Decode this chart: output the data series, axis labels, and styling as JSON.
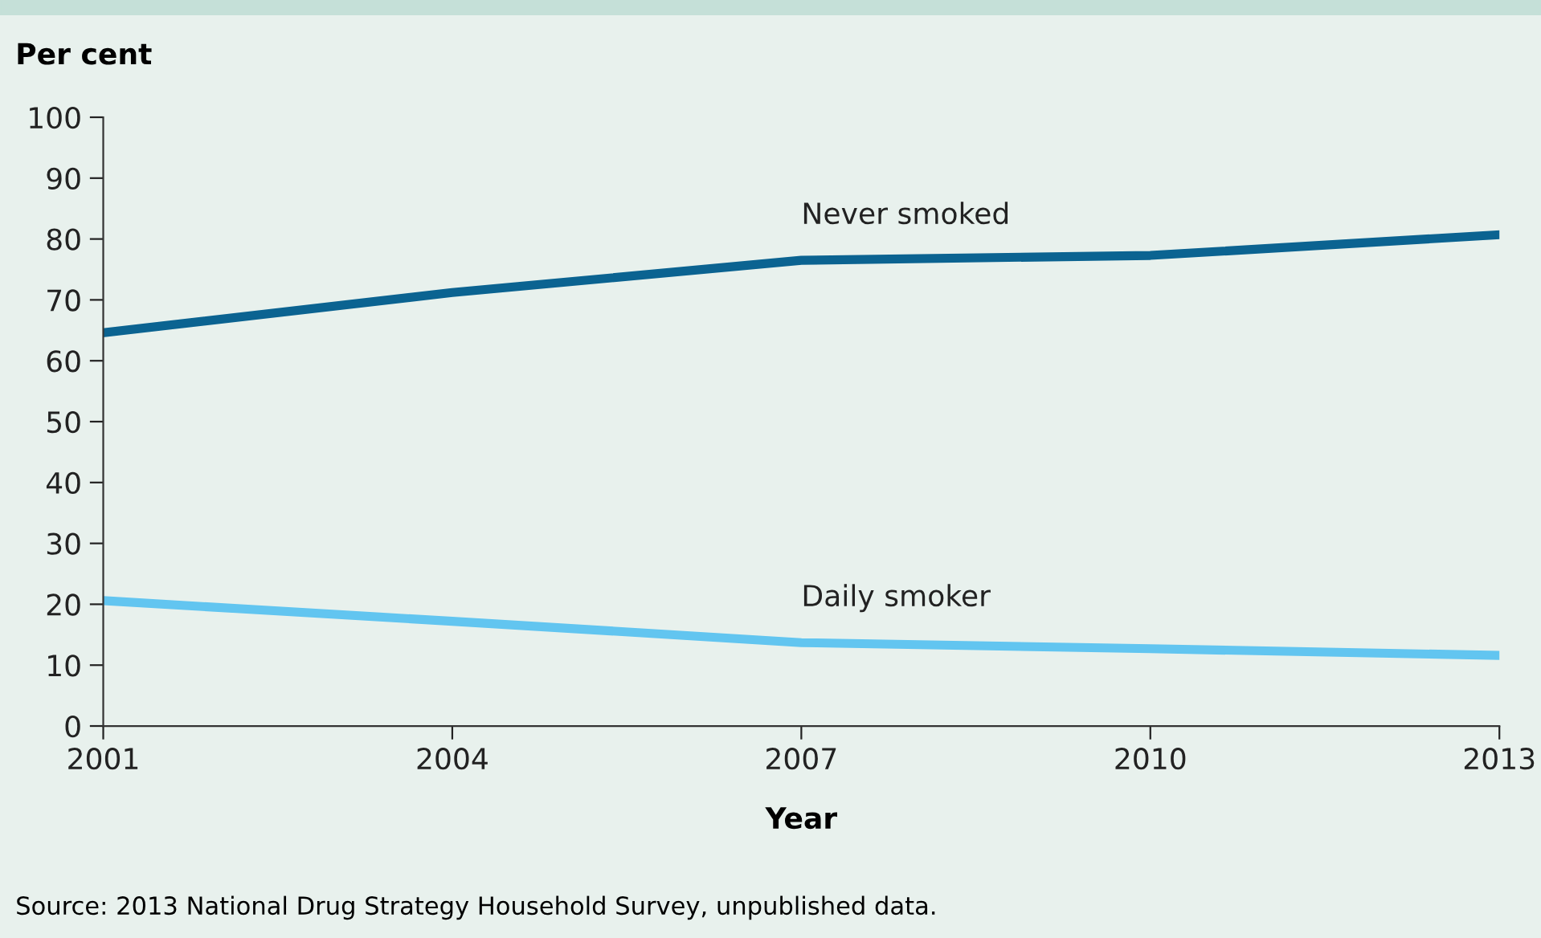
{
  "chart_data": {
    "type": "line",
    "ylabel": "Per cent",
    "xlabel": "Year",
    "x": [
      2001,
      2004,
      2007,
      2010,
      2013
    ],
    "series": [
      {
        "name": "Never smoked",
        "color": "#0b6391",
        "values": [
          64.6,
          71.2,
          76.5,
          77.3,
          80.7
        ]
      },
      {
        "name": "Daily smoker",
        "color": "#62c5f0",
        "values": [
          20.6,
          17.2,
          13.7,
          12.7,
          11.6
        ]
      }
    ],
    "xlim": [
      2001,
      2013
    ],
    "xticks": [
      2001,
      2004,
      2007,
      2010,
      2013
    ],
    "ylim": [
      0,
      100
    ],
    "yticks": [
      0,
      10,
      20,
      30,
      40,
      50,
      60,
      70,
      80,
      90,
      100
    ],
    "grid": false,
    "legend": false,
    "marker": "none",
    "line_style": "solid",
    "annotations": [
      "Source: 2013 National Drug Strategy Household Survey, unpublished data."
    ]
  }
}
